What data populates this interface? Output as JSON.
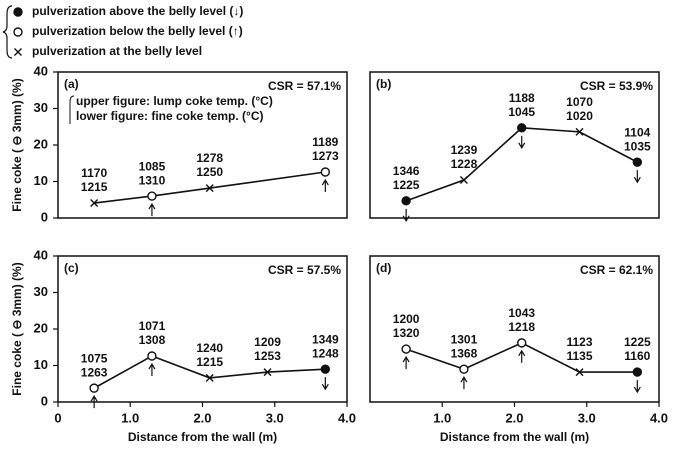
{
  "legend": [
    {
      "marker": "filled",
      "label": "pulverization above the belly level (↓)"
    },
    {
      "marker": "open",
      "label": "pulverization below the belly level (↑)"
    },
    {
      "marker": "cross",
      "label": "pulverization at the belly level"
    }
  ],
  "chart_data": [
    {
      "type": "line",
      "panel_label": "(a)",
      "csr": "CSR = 57.1%",
      "note": [
        "upper figure: lump coke temp. (°C)",
        "lower figure: fine coke temp. (°C)"
      ],
      "y_label": "Fine coke ( ⊖ 3mm) (%)",
      "x": [
        0.5,
        1.3,
        2.1,
        3.7
      ],
      "values": [
        4.1,
        6,
        8.2,
        12.6
      ],
      "markers": [
        "cross",
        "open",
        "cross",
        "open"
      ],
      "upper_temps": [
        1170,
        1085,
        1278,
        1189
      ],
      "lower_temps": [
        1215,
        1310,
        1250,
        1273
      ],
      "xlim": [
        0,
        4
      ],
      "ylim": [
        0,
        40
      ],
      "yticks": [
        0,
        10,
        20,
        30,
        40
      ]
    },
    {
      "type": "line",
      "panel_label": "(b)",
      "csr": "CSR = 53.9%",
      "x": [
        0.5,
        1.3,
        2.1,
        2.9,
        3.7
      ],
      "values": [
        4.7,
        10.4,
        24.7,
        23.6,
        15.3
      ],
      "markers": [
        "filled",
        "cross",
        "filled",
        "cross",
        "filled"
      ],
      "upper_temps": [
        1346,
        1239,
        1188,
        1070,
        1104
      ],
      "lower_temps": [
        1225,
        1228,
        1045,
        1020,
        1035
      ],
      "xlim": [
        0,
        4
      ],
      "ylim": [
        0,
        40
      ]
    },
    {
      "type": "line",
      "panel_label": "(c)",
      "csr": "CSR = 57.5%",
      "y_label": "Fine coke ( ⊖ 3mm) (%)",
      "x_label": "Distance from the wall (m)",
      "x": [
        0.5,
        1.3,
        2.1,
        2.9,
        3.7
      ],
      "values": [
        3.8,
        12.6,
        6.6,
        8.2,
        9
      ],
      "markers": [
        "open",
        "open",
        "cross",
        "cross",
        "filled"
      ],
      "upper_temps": [
        1075,
        1071,
        1240,
        1209,
        1349
      ],
      "lower_temps": [
        1263,
        1308,
        1215,
        1253,
        1248
      ],
      "xlim": [
        0,
        4
      ],
      "ylim": [
        0,
        40
      ],
      "yticks": [
        0,
        10,
        20,
        30,
        40
      ],
      "xticks": [
        0,
        {
          "value": 1,
          "label": "1.0"
        },
        {
          "value": 2,
          "label": "2.0"
        },
        {
          "value": 3,
          "label": "3.0"
        },
        {
          "value": 4,
          "label": "4.0"
        }
      ]
    },
    {
      "type": "line",
      "panel_label": "(d)",
      "csr": "CSR = 62.1%",
      "x_label": "Distance from the wall (m)",
      "x": [
        0.5,
        1.3,
        2.1,
        2.9,
        3.7
      ],
      "values": [
        14.5,
        9,
        16.2,
        8.2,
        8.2
      ],
      "markers": [
        "open",
        "open",
        "open",
        "cross",
        "filled"
      ],
      "upper_temps": [
        1200,
        1301,
        1043,
        1123,
        1225
      ],
      "lower_temps": [
        1320,
        1368,
        1218,
        1135,
        1160
      ],
      "xlim": [
        0,
        4
      ],
      "ylim": [
        0,
        40
      ],
      "xticks": [
        {
          "value": 1,
          "label": "1.0"
        },
        {
          "value": 2,
          "label": "2.0"
        },
        {
          "value": 3,
          "label": "3.0"
        },
        {
          "value": 4,
          "label": "4.0"
        }
      ]
    }
  ]
}
